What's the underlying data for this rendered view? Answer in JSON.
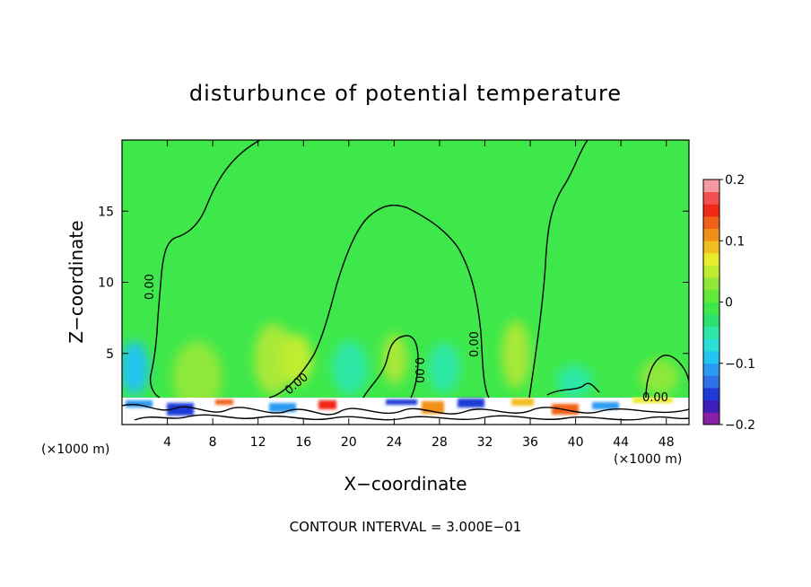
{
  "chart_data": {
    "type": "heatmap",
    "title": "disturbunce of potential temperature",
    "xlabel": "X−coordinate",
    "ylabel": "Z−coordinate",
    "x_unit_label": "(×1000 m)",
    "x_unit_label_right": "(×1000 m)",
    "xlim": [
      0,
      50
    ],
    "ylim": [
      0,
      20
    ],
    "x_ticks": [
      4,
      8,
      12,
      16,
      20,
      24,
      28,
      32,
      36,
      40,
      44,
      48
    ],
    "y_ticks": [
      5,
      10,
      15
    ],
    "colorbar": {
      "range": [
        -0.2,
        0.2
      ],
      "tick_values": [
        0.2,
        0.1,
        0,
        -0.1,
        -0.2
      ],
      "tick_labels": [
        "0.2",
        "0.1",
        "0",
        "−0.1",
        "−0.2"
      ],
      "colors": [
        "#8a1fa8",
        "#3c1fb8",
        "#1f3ad6",
        "#2f6fe8",
        "#2a9af0",
        "#22c4f0",
        "#28e0d8",
        "#2ee8a8",
        "#2ee070",
        "#3ee84a",
        "#62e83a",
        "#8ee83a",
        "#c0ec30",
        "#e8ec2a",
        "#f0c020",
        "#f09018",
        "#f06018",
        "#f02818",
        "#f05050",
        "#f49aa0"
      ]
    },
    "contour_levels": [
      {
        "value": 0.0,
        "label": "0.00"
      }
    ],
    "contour_interval_text": "CONTOUR INTERVAL = 3.000E−01"
  }
}
